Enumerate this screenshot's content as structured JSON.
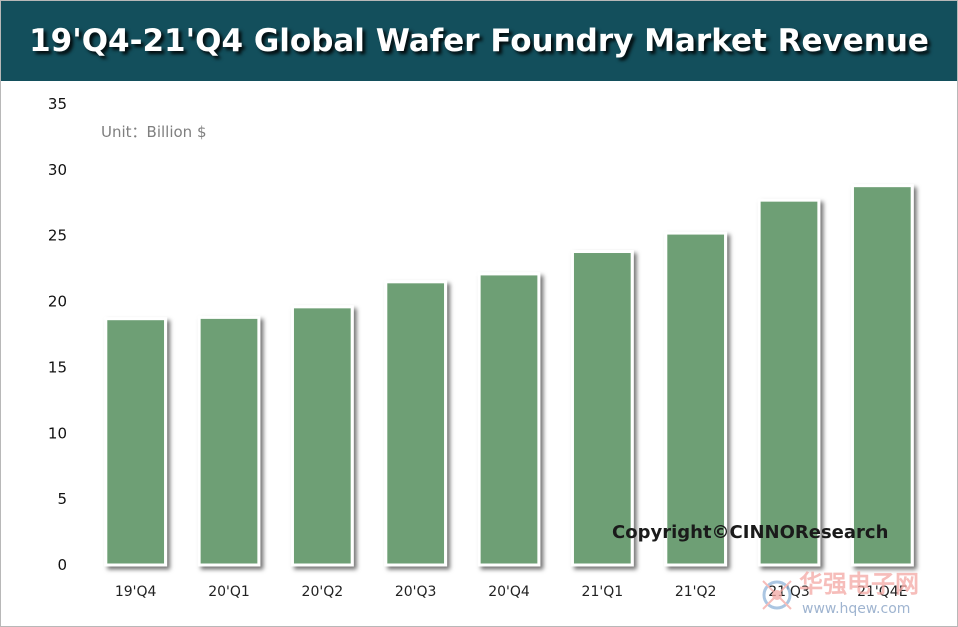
{
  "header": {
    "title": "19'Q4-21'Q4 Global Wafer Foundry Market Revenue",
    "background_color": "#134f5c"
  },
  "chart_data": {
    "type": "bar",
    "title": "19'Q4-21'Q4 Global Wafer Foundry Market Revenue",
    "unit_label": "Unit：Billion $",
    "categories": [
      "19'Q4",
      "20'Q1",
      "20'Q2",
      "20'Q3",
      "20'Q4",
      "21'Q1",
      "21'Q2",
      "21'Q3",
      "21'Q4E"
    ],
    "values": [
      18.7,
      18.8,
      19.6,
      21.5,
      22.1,
      23.8,
      25.2,
      27.7,
      28.8
    ],
    "ylim": [
      0,
      35
    ],
    "yticks": [
      "0",
      "5",
      "10",
      "15",
      "20",
      "25",
      "30",
      "35"
    ],
    "xlabel": "",
    "ylabel": "",
    "grid": false,
    "legend": "none",
    "bar_color": "#6e9f74"
  },
  "annotations": {
    "copyright": "Copyright©CINNOResearch"
  },
  "watermark": {
    "text_cn": "华强电子网",
    "url": "www.hqew.com"
  }
}
